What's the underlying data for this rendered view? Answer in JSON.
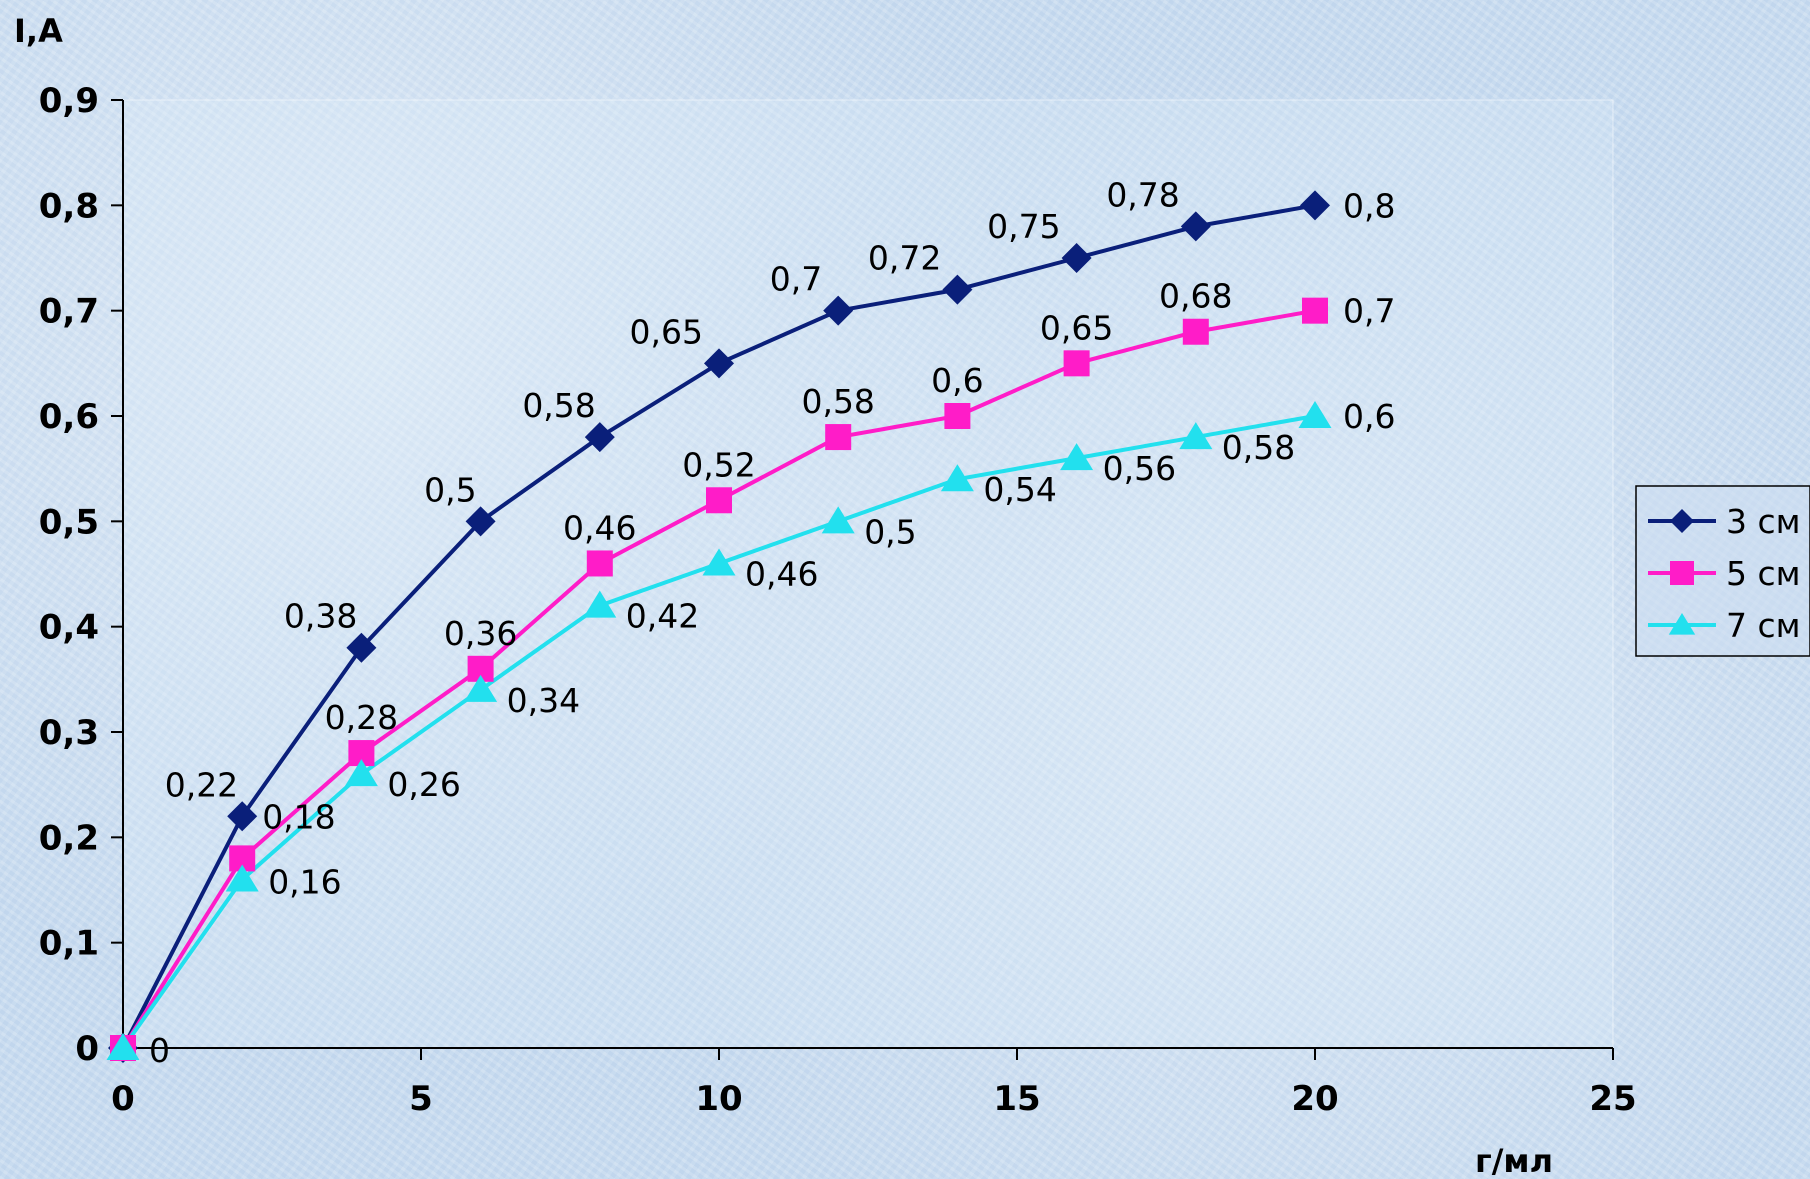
{
  "chart_data": {
    "type": "line",
    "title": "",
    "xlabel": "г/мл",
    "ylabel": "I,A",
    "xlim": [
      0,
      25
    ],
    "ylim": [
      0,
      0.9
    ],
    "x_ticks": [
      "0",
      "5",
      "10",
      "15",
      "20",
      "25"
    ],
    "y_ticks": [
      "0",
      "0,1",
      "0,2",
      "0,3",
      "0,4",
      "0,5",
      "0,6",
      "0,7",
      "0,8",
      "0,9"
    ],
    "grid": false,
    "legend_position": "right",
    "x": [
      0,
      2,
      4,
      6,
      8,
      10,
      12,
      14,
      16,
      18,
      20
    ],
    "series": [
      {
        "name": "3 см",
        "color": "#0a1f7a",
        "marker": "diamond",
        "values": [
          0,
          0.22,
          0.38,
          0.5,
          0.58,
          0.65,
          0.7,
          0.72,
          0.75,
          0.78,
          0.8
        ],
        "labels": [
          "",
          "0,22",
          "0,38",
          "0,5",
          "0,58",
          "0,65",
          "0,7",
          "0,72",
          "0,75",
          "0,78",
          "0,8"
        ]
      },
      {
        "name": "5 см",
        "color": "#ff1cc8",
        "marker": "square",
        "values": [
          0,
          0.18,
          0.28,
          0.36,
          0.46,
          0.52,
          0.58,
          0.6,
          0.65,
          0.68,
          0.7
        ],
        "labels": [
          "",
          "0,18",
          "0,28",
          "0,36",
          "0,46",
          "0,52",
          "0,58",
          "0,6",
          "0,65",
          "0,68",
          "0,7"
        ]
      },
      {
        "name": "7 см",
        "color": "#22e0ee",
        "marker": "triangle",
        "values": [
          0,
          0.16,
          0.26,
          0.34,
          0.42,
          0.46,
          0.5,
          0.54,
          0.56,
          0.58,
          0.6
        ],
        "labels": [
          "0",
          "0,16",
          "0,26",
          "0,34",
          "0,42",
          "0,46",
          "0,5",
          "0,54",
          "0,56",
          "0,58",
          "0,6"
        ]
      }
    ]
  }
}
